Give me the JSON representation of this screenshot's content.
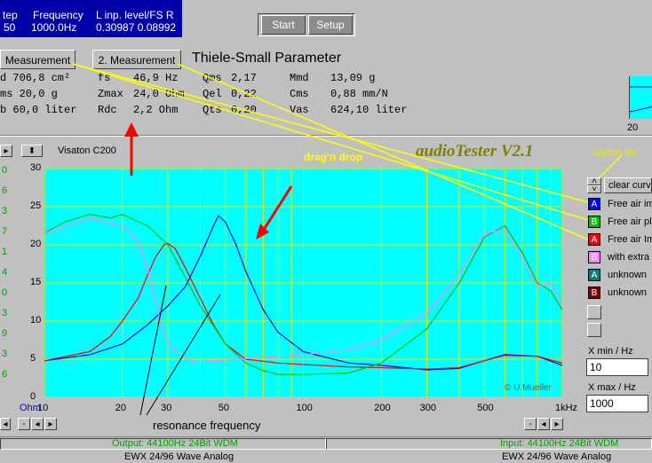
{
  "status": {
    "col1_label": "tep",
    "col1_value": "50",
    "col2_label": "Frequency",
    "col2_value": "1000.0Hz",
    "col3_label": "L inp. level/FS  R",
    "col3_value": "0.30987 0.08992"
  },
  "toolbar": {
    "start_label": "Start",
    "setup_label": "Setup"
  },
  "tabs": {
    "measurement1": "Measurement",
    "measurement2": "2. Measurement",
    "title": "Thiele-Small Parameter"
  },
  "params": {
    "c0_r1": "d  706,8 cm²",
    "c0_r2": "ms  20,0 g",
    "c0_r3": "b   60,0 liter",
    "fs_label": "fs",
    "fs_value": "46,9 Hz",
    "zmax_label": "Zmax",
    "zmax_value": "24,0 Ohm",
    "rdc_label": "Rdc",
    "rdc_value": "2,2 Ohm",
    "qms_label": "Qms",
    "qms_value": "2,17",
    "qel_label": "Qel",
    "qel_value": "0,22",
    "qts_label": "Qts",
    "qts_value": "0,20",
    "mmd_label": "Mmd",
    "mmd_value": "13,09 g",
    "cms_label": "Cms",
    "cms_value": "0,88 mm/N",
    "vas_label": "Vas",
    "vas_value": "624,10 liter",
    "mini_tick": "20"
  },
  "plot_header": {
    "speaker": "Visaton C200",
    "drag_drop": "drag'n drop",
    "app_title": "audioTester V2.1",
    "switch_label": "switch for",
    "copyright": "© U.Mueller"
  },
  "axes": {
    "y_ticks": [
      "30",
      "25",
      "20",
      "15",
      "10",
      "5",
      "0"
    ],
    "y_left_green": [
      "0",
      "6",
      "3",
      "7",
      "1",
      "4",
      "0",
      "3",
      "9",
      "3",
      "6"
    ],
    "x_ticks": [
      "10",
      "20",
      "30",
      "50",
      "100",
      "200",
      "300",
      "500",
      "1kHz"
    ],
    "x_unit": "Ohm"
  },
  "annotation": {
    "resonance": "resonance frequency"
  },
  "legend": {
    "clear_label": "clear curv",
    "items": [
      {
        "letter": "A",
        "label": "Free air im",
        "color": "#0000ff"
      },
      {
        "letter": "B",
        "label": "Free air pl",
        "color": "#00c000"
      },
      {
        "letter": "A",
        "label": "Free air Im",
        "color": "#ff0000"
      },
      {
        "letter": "B",
        "label": "with extra",
        "color": "#ff80ff"
      },
      {
        "letter": "A",
        "label": "unknown",
        "color": "#008080"
      },
      {
        "letter": "B",
        "label": "unknown",
        "color": "#800000"
      }
    ]
  },
  "x_range": {
    "min_label": "X min / Hz",
    "min_value": "10",
    "max_label": "X max / Hz",
    "max_value": "1000"
  },
  "footer": {
    "output_label": "Output: 44100Hz 24Bit WDM",
    "output_device": "EWX 24/96 Wave Analog",
    "input_label": "Input: 44100Hz 24Bit WDM",
    "input_device": "EWX 24/96 Wave Analog"
  },
  "chart_data": {
    "type": "line",
    "xlabel": "",
    "ylabel": "Ohm",
    "x_scale": "log",
    "xlim": [
      10,
      1000
    ],
    "ylim": [
      0,
      30
    ],
    "grid": true,
    "series": [
      {
        "color": "#0000ff",
        "x": [
          10,
          15,
          20,
          25,
          30,
          35,
          40,
          45,
          47,
          50,
          55,
          60,
          70,
          80,
          100,
          150,
          200,
          300,
          400,
          500,
          600,
          800,
          1000
        ],
        "y": [
          4.8,
          5.6,
          7.0,
          9.5,
          12.0,
          14.5,
          18.5,
          22.5,
          23.8,
          23.0,
          20.0,
          16.5,
          11.5,
          8.5,
          6.0,
          4.5,
          4.2,
          3.6,
          3.8,
          4.8,
          5.6,
          5.4,
          4.2
        ]
      },
      {
        "color": "#ff0000",
        "x": [
          10,
          15,
          18,
          20,
          23,
          25,
          27,
          29,
          30,
          32,
          35,
          40,
          45,
          50,
          60,
          80,
          100,
          150,
          200,
          300,
          400,
          500,
          600,
          800,
          1000
        ],
        "y": [
          4.8,
          6.0,
          8.0,
          10.0,
          13.0,
          16.0,
          18.5,
          20.0,
          20.2,
          19.5,
          17.0,
          13.0,
          9.5,
          7.0,
          5.0,
          4.5,
          4.3,
          4.0,
          3.9,
          3.7,
          3.9,
          4.8,
          5.5,
          5.4,
          4.5
        ]
      },
      {
        "color": "#00c000",
        "x": [
          10,
          12,
          15,
          18,
          20,
          25,
          30,
          40,
          50,
          60,
          70,
          80,
          100,
          150,
          200,
          300,
          400,
          500,
          600,
          700,
          800,
          900,
          1000
        ],
        "y": [
          21.5,
          23.0,
          24.0,
          23.5,
          24.0,
          22.5,
          20.0,
          12.0,
          7.0,
          4.5,
          3.5,
          3.0,
          3.0,
          3.2,
          4.5,
          9.0,
          15.0,
          21.0,
          22.5,
          19.0,
          15.0,
          14.0,
          11.5
        ]
      },
      {
        "color": "#ff80ff",
        "x": [
          10,
          15,
          20,
          23,
          25,
          28,
          30,
          35,
          40,
          50,
          70,
          100,
          150,
          200,
          300,
          400,
          500,
          600,
          700,
          800,
          900,
          1000
        ],
        "y": [
          21.5,
          23.5,
          22.5,
          20.5,
          17.0,
          10.0,
          7.0,
          5.0,
          4.7,
          4.9,
          5.2,
          5.6,
          6.2,
          7.5,
          11.0,
          16.0,
          21.5,
          22.0,
          18.5,
          14.5,
          15.0,
          12.0
        ]
      }
    ]
  }
}
